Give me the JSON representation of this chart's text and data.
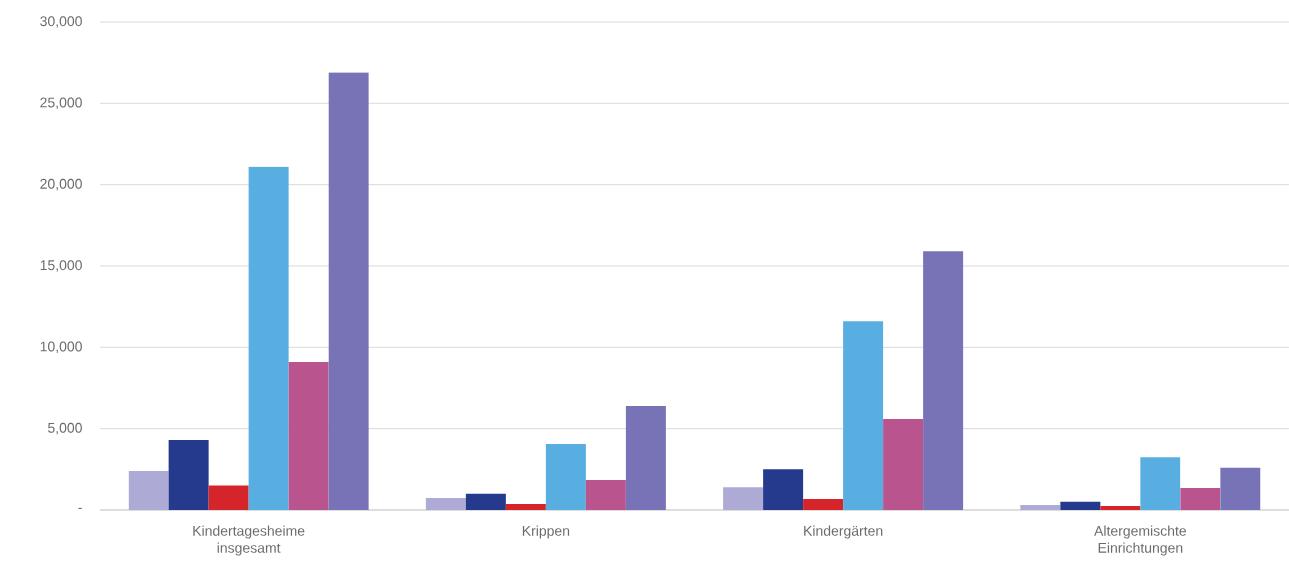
{
  "chart_data": {
    "type": "bar",
    "categories": [
      "Kindertagesheime insgesamt",
      "Krippen",
      "Kindergärten",
      "Altergemischte Einrichtungen"
    ],
    "series": [
      {
        "color": "#adaad6",
        "values": [
          2400,
          740,
          1400,
          300
        ]
      },
      {
        "color": "#253a8c",
        "values": [
          4300,
          1000,
          2500,
          500
        ]
      },
      {
        "color": "#d6252a",
        "values": [
          1500,
          370,
          680,
          250
        ]
      },
      {
        "color": "#58aee0",
        "values": [
          21100,
          4050,
          11600,
          3250
        ]
      },
      {
        "color": "#b9548e",
        "values": [
          9100,
          1850,
          5600,
          1350
        ]
      },
      {
        "color": "#7872b6",
        "values": [
          26900,
          6400,
          15900,
          2600
        ]
      }
    ],
    "ylim": [
      0,
      30000
    ],
    "yticks": [
      {
        "value": 0,
        "label": "-"
      },
      {
        "value": 5000,
        "label": "5,000"
      },
      {
        "value": 10000,
        "label": "10,000"
      },
      {
        "value": 15000,
        "label": "15,000"
      },
      {
        "value": 20000,
        "label": "20,000"
      },
      {
        "value": 25000,
        "label": "25,000"
      },
      {
        "value": 30000,
        "label": "30,000"
      }
    ],
    "grid": "y"
  }
}
